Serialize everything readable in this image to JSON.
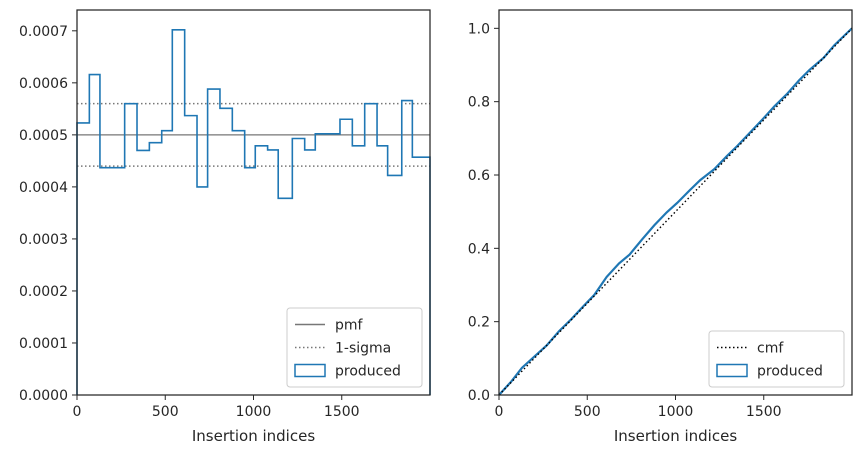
{
  "chart_data": [
    {
      "type": "histogram",
      "xlabel": "Insertion indices",
      "ylabel": "",
      "xlim": [
        0,
        2000
      ],
      "ylim": [
        0,
        0.00074
      ],
      "xticks": [
        0,
        500,
        1000,
        1500
      ],
      "xtick_labels": [
        "0",
        "500",
        "1000",
        "1500"
      ],
      "yticks": [
        0,
        0.0001,
        0.0002,
        0.0003,
        0.0004,
        0.0005,
        0.0006,
        0.0007
      ],
      "ytick_labels": [
        "0.0000",
        "0.0001",
        "0.0002",
        "0.0003",
        "0.0004",
        "0.0005",
        "0.0006",
        "0.0007"
      ],
      "pmf": 0.0005,
      "sigma_band": [
        0.00044,
        0.00056
      ],
      "bin_edges": [
        0,
        70,
        130,
        270,
        340,
        410,
        480,
        540,
        610,
        680,
        740,
        810,
        880,
        950,
        1010,
        1080,
        1140,
        1220,
        1290,
        1350,
        1490,
        1560,
        1630,
        1700,
        1760,
        1840,
        1900,
        1980,
        2000
      ],
      "values": [
        0.000523,
        0.000616,
        0.000437,
        0.00056,
        0.00047,
        0.000485,
        0.000508,
        0.000702,
        0.000537,
        0.0004,
        0.000588,
        0.000551,
        0.000508,
        0.000437,
        0.000479,
        0.000471,
        0.000378,
        0.000493,
        0.000471,
        0.000502,
        0.00053,
        0.000479,
        0.00056,
        0.000479,
        0.000422,
        0.000566,
        0.000457,
        0.000457
      ],
      "legend": {
        "position": "lower right",
        "entries": [
          {
            "label": "pmf",
            "style": "line",
            "color": "#777777"
          },
          {
            "label": "1-sigma",
            "style": "dotted",
            "color": "#777777"
          },
          {
            "label": "produced",
            "style": "box",
            "color": "#1f77b4"
          }
        ]
      },
      "colors": {
        "produced": "#1f77b4",
        "reference": "#777777"
      }
    },
    {
      "type": "line",
      "xlabel": "Insertion indices",
      "ylabel": "",
      "xlim": [
        0,
        2000
      ],
      "ylim": [
        0,
        1.05
      ],
      "xticks": [
        0,
        500,
        1000,
        1500
      ],
      "xtick_labels": [
        "0",
        "500",
        "1000",
        "1500"
      ],
      "yticks": [
        0,
        0.2,
        0.4,
        0.6,
        0.8,
        1.0
      ],
      "ytick_labels": [
        "0.0",
        "0.2",
        "0.4",
        "0.6",
        "0.8",
        "1.0"
      ],
      "series": [
        {
          "name": "cmf",
          "x": [
            0,
            2000
          ],
          "y": [
            0,
            1.0
          ]
        },
        {
          "name": "produced",
          "x": [
            0,
            70,
            130,
            270,
            340,
            410,
            480,
            540,
            610,
            680,
            740,
            810,
            880,
            950,
            1010,
            1080,
            1140,
            1220,
            1290,
            1350,
            1490,
            1560,
            1630,
            1700,
            1760,
            1840,
            1900,
            1980,
            2000
          ],
          "y": [
            0,
            0.037,
            0.074,
            0.135,
            0.174,
            0.207,
            0.243,
            0.273,
            0.322,
            0.359,
            0.383,
            0.424,
            0.463,
            0.498,
            0.524,
            0.558,
            0.586,
            0.616,
            0.651,
            0.679,
            0.75,
            0.787,
            0.82,
            0.858,
            0.887,
            0.92,
            0.954,
            0.991,
            1.0
          ]
        }
      ],
      "legend": {
        "position": "lower right",
        "entries": [
          {
            "label": "cmf",
            "style": "dotted",
            "color": "#000000"
          },
          {
            "label": "produced",
            "style": "box",
            "color": "#1f77b4"
          }
        ]
      },
      "colors": {
        "produced": "#1f77b4",
        "reference": "#000000"
      }
    }
  ]
}
